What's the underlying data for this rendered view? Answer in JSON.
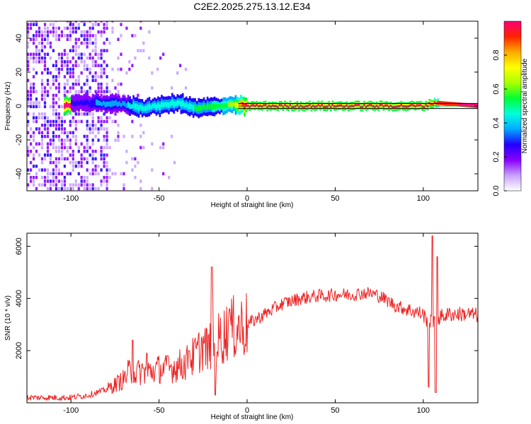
{
  "title": "C2E2.2025.275.13.12.E34",
  "chart_data": [
    {
      "type": "heatmap",
      "xlabel": "Height of straight line (km)",
      "ylabel": "Frequency (Hz)",
      "xlim": [
        -125,
        131
      ],
      "ylim": [
        -50,
        50
      ],
      "xticks": [
        -100,
        -50,
        0,
        50,
        100
      ],
      "yticks": [
        -40,
        -20,
        0,
        20,
        40
      ],
      "colorbar": {
        "label": "Normalized spectral amplitude",
        "ticks": [
          0.0,
          0.2,
          0.4,
          0.6,
          0.8
        ],
        "range": [
          0,
          1
        ],
        "colors": [
          "#ffffff",
          "#c8a0ff",
          "#8800ff",
          "#2200ff",
          "#00aaff",
          "#00ffdd",
          "#00ff33",
          "#aaff00",
          "#ffff00",
          "#ffaa00",
          "#ff2200",
          "#ff0077"
        ]
      },
      "ridge": [
        {
          "x": -100,
          "y": 2.0,
          "amp": 0.25
        },
        {
          "x": -90,
          "y": 1.5,
          "amp": 0.3
        },
        {
          "x": -80,
          "y": 1.5,
          "amp": 0.35
        },
        {
          "x": -70,
          "y": 1.0,
          "amp": 0.4
        },
        {
          "x": -60,
          "y": -1.0,
          "amp": 0.45
        },
        {
          "x": -50,
          "y": 0.0,
          "amp": 0.45
        },
        {
          "x": -40,
          "y": 2.0,
          "amp": 0.45
        },
        {
          "x": -30,
          "y": -1.0,
          "amp": 0.5
        },
        {
          "x": -20,
          "y": -0.5,
          "amp": 0.55
        },
        {
          "x": -10,
          "y": 0.5,
          "amp": 0.6
        },
        {
          "x": 0,
          "y": 0.0,
          "amp": 1.0
        },
        {
          "x": 25,
          "y": 0.0,
          "amp": 1.0
        },
        {
          "x": 50,
          "y": 0.0,
          "amp": 1.0
        },
        {
          "x": 75,
          "y": 0.0,
          "amp": 1.0
        },
        {
          "x": 100,
          "y": 0.0,
          "amp": 1.0
        },
        {
          "x": 106,
          "y": 2.0,
          "amp": 0.9
        },
        {
          "x": 130,
          "y": 0.0,
          "amp": 1.0
        }
      ],
      "reference_lines": [
        {
          "y": 1.5,
          "color": "#000000"
        },
        {
          "y": -1.5,
          "color": "#000000"
        },
        {
          "y": 0.0,
          "color": "#00c000"
        }
      ]
    },
    {
      "type": "line",
      "xlabel": "Height of straight line (km)",
      "ylabel": "SNR (10 * v/v)",
      "xlim": [
        -125,
        131
      ],
      "ylim": [
        0,
        6500
      ],
      "xticks": [
        -100,
        -50,
        0,
        50,
        100
      ],
      "yticks": [
        2000,
        4000,
        6000
      ],
      "series": [
        {
          "color": "#ee2222",
          "x": [
            -125,
            -110,
            -100,
            -90,
            -80,
            -75,
            -70,
            -67,
            -65,
            -60,
            -55,
            -50,
            -45,
            -40,
            -35,
            -30,
            -27,
            -25,
            -22,
            -20,
            -18,
            -15,
            -10,
            -5,
            0,
            5,
            10,
            15,
            20,
            25,
            30,
            35,
            40,
            45,
            50,
            55,
            60,
            65,
            70,
            75,
            80,
            85,
            90,
            95,
            100,
            103,
            105,
            107,
            110,
            115,
            120,
            125,
            131
          ],
          "y": [
            200,
            200,
            200,
            300,
            500,
            700,
            900,
            1200,
            1100,
            1200,
            1200,
            1300,
            1300,
            1400,
            1500,
            1800,
            2000,
            2200,
            2000,
            2400,
            2300,
            2500,
            2800,
            2900,
            3000,
            3200,
            3400,
            3600,
            3800,
            3900,
            4000,
            4050,
            4100,
            4100,
            4150,
            4150,
            4150,
            4200,
            4200,
            4100,
            3900,
            3700,
            3600,
            3500,
            3400,
            3000,
            3100,
            3200,
            3300,
            3400,
            3400,
            3400,
            3350
          ],
          "spikes": [
            {
              "x": -65,
              "y": 2400
            },
            {
              "x": -57,
              "y": 1900
            },
            {
              "x": -45,
              "y": 1800
            },
            {
              "x": -33,
              "y": 2000
            },
            {
              "x": -20,
              "y": 5200
            },
            {
              "x": -18,
              "y": 300
            },
            {
              "x": -10,
              "y": 3600
            },
            {
              "x": 103,
              "y": 600
            },
            {
              "x": 105,
              "y": 6400
            },
            {
              "x": 107,
              "y": 400
            },
            {
              "x": 108,
              "y": 5600
            }
          ]
        }
      ]
    }
  ]
}
